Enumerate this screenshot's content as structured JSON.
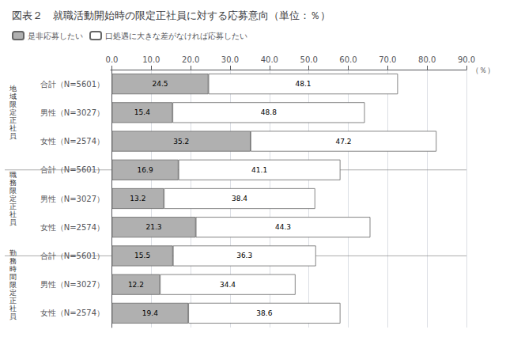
{
  "chart_data": {
    "type": "bar",
    "orientation": "horizontal",
    "stacked": true,
    "data_labels": true,
    "title": "図表２　就職活動開始時の限定正社員に対する応募意向（単位：％）",
    "xlabel": "（％）",
    "categories": [
      "合計（N=5601）",
      "男性（N=3027）",
      "女性（N=2574）",
      "合計（N=5601）",
      "男性（N=3027）",
      "女性（N=2574）",
      "合計（N=5601）",
      "男性（N=3027）",
      "女性（N=2574）"
    ],
    "groups": [
      {
        "label": "地\n域\n限\n定\n正\n社\n員",
        "categories": [
          "合計（N=5601）",
          "男性（N=3027）",
          "女性（N=2574）"
        ]
      },
      {
        "label": "職\n務\n限\n定\n正\n社\n員",
        "categories": [
          "合計（N=5601）",
          "男性（N=3027）",
          "女性（N=2574）"
        ]
      },
      {
        "label": "勤\n務\n時\n間\n限\n定\n正\n社\n員",
        "categories": [
          "合計（N=5601）",
          "男性（N=3027）",
          "女性（N=2574）"
        ]
      }
    ],
    "series": [
      {
        "name": "是非応募したい",
        "color": "#b0b0b0",
        "values": [
          24.5,
          15.4,
          35.2,
          16.9,
          13.2,
          21.3,
          15.5,
          12.2,
          19.4
        ]
      },
      {
        "name": "口処遇に大きな差がなければ応募したい",
        "color": "#ffffff",
        "values": [
          48.1,
          48.8,
          47.2,
          41.1,
          38.4,
          44.3,
          36.3,
          34.4,
          38.6
        ]
      }
    ],
    "xlim": [
      -0.3,
      90
    ],
    "xticks": [
      {
        "value": 0,
        "label": "0.0"
      },
      {
        "value": 10,
        "label": "10.0"
      },
      {
        "value": 20,
        "label": "20.0"
      },
      {
        "value": 30,
        "label": "30.0"
      },
      {
        "value": 40,
        "label": "40.0"
      },
      {
        "value": 50,
        "label": "50.0"
      },
      {
        "value": 60,
        "label": "60.0"
      },
      {
        "value": 70,
        "label": "70.0"
      },
      {
        "value": 80,
        "label": "80.0"
      },
      {
        "value": 90,
        "label": "90.0"
      }
    ],
    "grid": true,
    "legend": "upper left"
  }
}
